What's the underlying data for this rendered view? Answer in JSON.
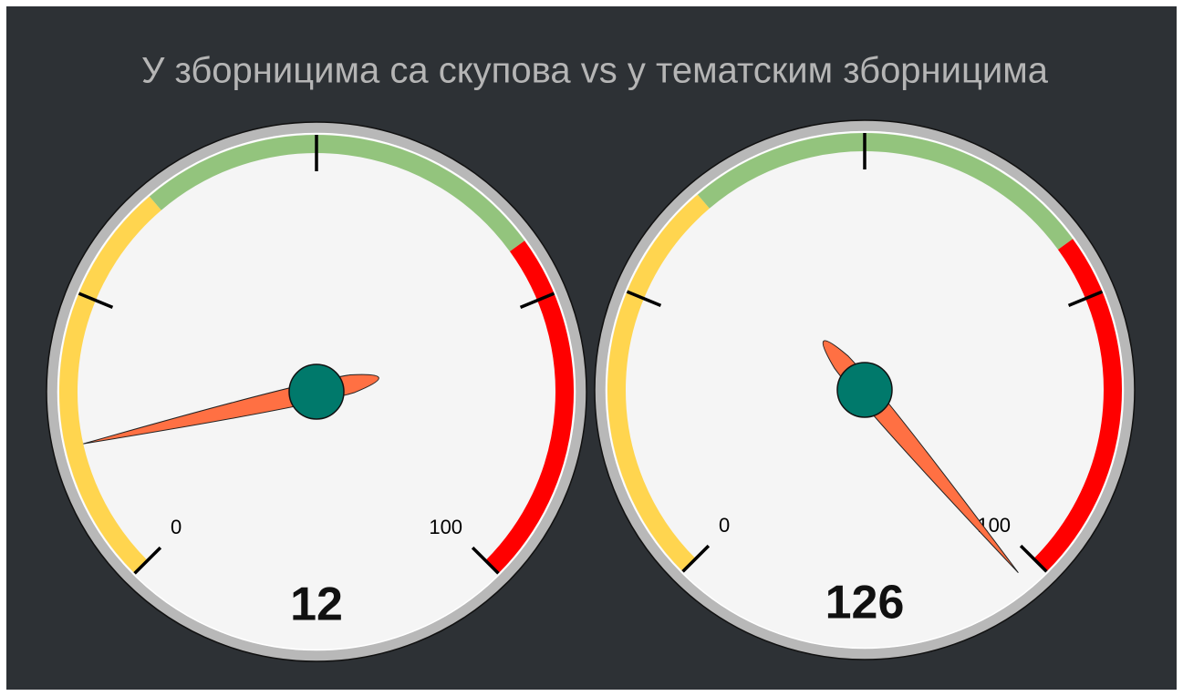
{
  "chart_data": [
    {
      "type": "gauge",
      "title": "У зборницима са скупова vs у тематским зборницима",
      "range": [
        0,
        100
      ],
      "ticks": [
        25,
        50,
        75
      ],
      "value": 12,
      "bands": [
        {
          "from": 0,
          "to": 35,
          "color": "#ffd54f"
        },
        {
          "from": 35,
          "to": 70,
          "color": "#93c47d"
        },
        {
          "from": 70,
          "to": 100,
          "color": "#ff0000"
        }
      ],
      "needle_color": "#ff7043",
      "hub_color": "#00796b"
    },
    {
      "type": "gauge",
      "range": [
        0,
        100
      ],
      "ticks": [
        25,
        50,
        75
      ],
      "value": 126,
      "bands": [
        {
          "from": 0,
          "to": 35,
          "color": "#ffd54f"
        },
        {
          "from": 35,
          "to": 70,
          "color": "#93c47d"
        },
        {
          "from": 70,
          "to": 100,
          "color": "#ff0000"
        }
      ],
      "needle_color": "#ff7043",
      "hub_color": "#00796b"
    }
  ]
}
